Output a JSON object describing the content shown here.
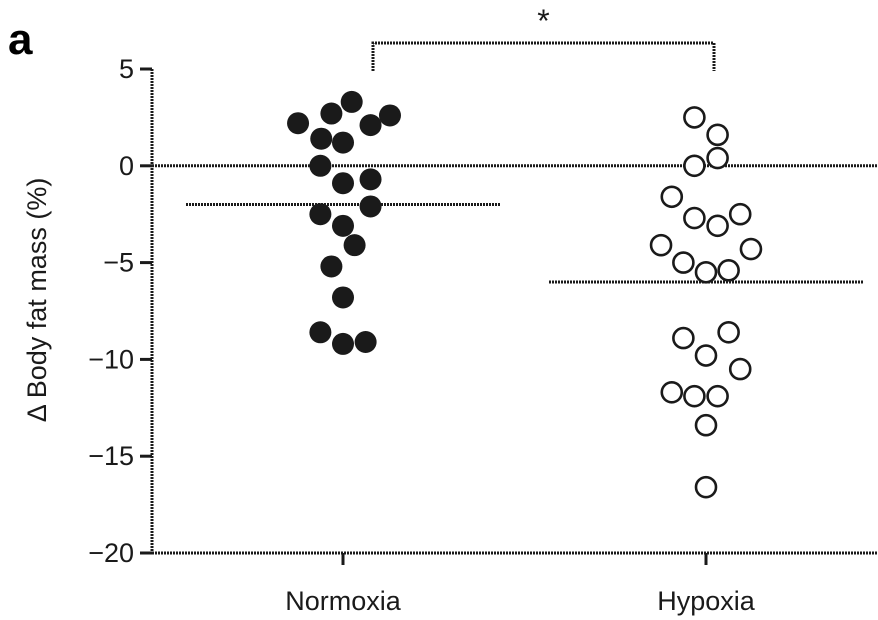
{
  "panel_label": "a",
  "chart_data": {
    "type": "scatter",
    "title": "",
    "xlabel": "",
    "ylabel": "Δ Body fat mass (%)",
    "categories": [
      "Normoxia",
      "Hypoxia"
    ],
    "ylim": [
      -20,
      5
    ],
    "yticks": [
      5,
      0,
      -5,
      -10,
      -15,
      -20
    ],
    "ytick_labels": [
      "5",
      "0",
      "−5",
      "−10",
      "−15",
      "−20"
    ],
    "reference_line": 0,
    "series": [
      {
        "category": "Normoxia",
        "marker": "filled-circle",
        "points": [
          {
            "offset": 0.3,
            "y": 3.3
          },
          {
            "offset": -0.4,
            "y": 2.7
          },
          {
            "offset": 1.62,
            "y": 2.6
          },
          {
            "offset": -1.55,
            "y": 2.2
          },
          {
            "offset": 0.95,
            "y": 2.1
          },
          {
            "offset": -0.75,
            "y": 1.4
          },
          {
            "offset": 0.0,
            "y": 1.2
          },
          {
            "offset": -0.78,
            "y": 0.0
          },
          {
            "offset": 0.95,
            "y": -0.7
          },
          {
            "offset": 0.0,
            "y": -0.9
          },
          {
            "offset": 0.95,
            "y": -2.1
          },
          {
            "offset": -0.78,
            "y": -2.5
          },
          {
            "offset": 0.0,
            "y": -3.1
          },
          {
            "offset": 0.4,
            "y": -4.1
          },
          {
            "offset": -0.4,
            "y": -5.2
          },
          {
            "offset": 0.0,
            "y": -6.8
          },
          {
            "offset": -0.78,
            "y": -8.6
          },
          {
            "offset": 0.0,
            "y": -9.2
          },
          {
            "offset": 0.78,
            "y": -9.1
          }
        ],
        "mean": -2.0
      },
      {
        "category": "Hypoxia",
        "marker": "open-circle",
        "points": [
          {
            "offset": -0.4,
            "y": 2.5
          },
          {
            "offset": 0.4,
            "y": 1.6
          },
          {
            "offset": 0.4,
            "y": 0.4
          },
          {
            "offset": -0.4,
            "y": 0.0
          },
          {
            "offset": -1.18,
            "y": -1.6
          },
          {
            "offset": 1.18,
            "y": -2.5
          },
          {
            "offset": -0.4,
            "y": -2.7
          },
          {
            "offset": 0.4,
            "y": -3.1
          },
          {
            "offset": -1.55,
            "y": -4.1
          },
          {
            "offset": 1.55,
            "y": -4.3
          },
          {
            "offset": -0.78,
            "y": -5.0
          },
          {
            "offset": 0.0,
            "y": -5.5
          },
          {
            "offset": 0.78,
            "y": -5.4
          },
          {
            "offset": 0.78,
            "y": -8.6
          },
          {
            "offset": -0.78,
            "y": -8.9
          },
          {
            "offset": 0.0,
            "y": -9.8
          },
          {
            "offset": 1.18,
            "y": -10.5
          },
          {
            "offset": -1.18,
            "y": -11.7
          },
          {
            "offset": -0.4,
            "y": -11.9
          },
          {
            "offset": 0.4,
            "y": -11.9
          },
          {
            "offset": 0.0,
            "y": -13.4
          },
          {
            "offset": 0.0,
            "y": -16.6
          }
        ],
        "mean": -6.0
      }
    ],
    "significance": {
      "between": [
        "Normoxia",
        "Hypoxia"
      ],
      "label": "*"
    },
    "grid": false,
    "legend": "none"
  },
  "colors": {
    "ink": "#1a1a1a",
    "filled": "#1a1a1a",
    "open_fill": "#ffffff"
  }
}
